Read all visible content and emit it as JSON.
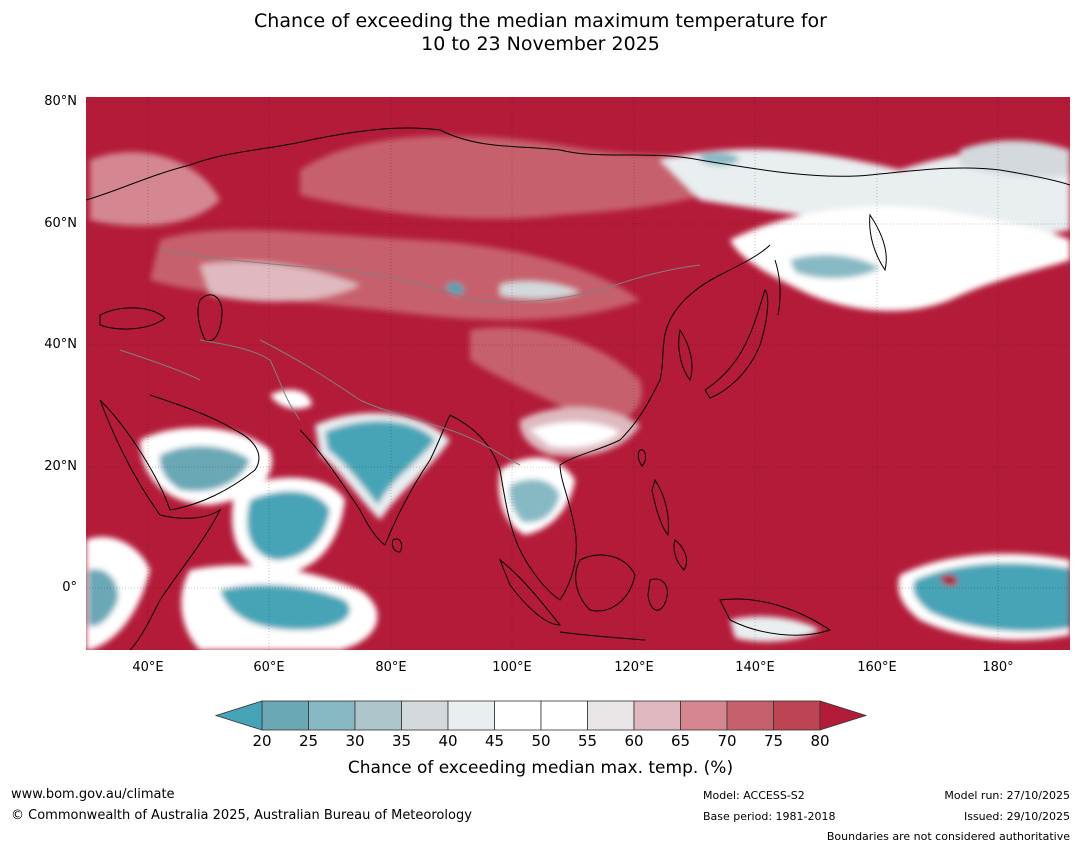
{
  "title": {
    "line1": "Chance of exceeding the median maximum temperature for",
    "line2": "10 to 23 November 2025"
  },
  "map": {
    "lat_labels": [
      "80°N",
      "60°N",
      "40°N",
      "20°N",
      "0°"
    ],
    "lon_labels": [
      "40°E",
      "60°E",
      "80°E",
      "100°E",
      "120°E",
      "140°E",
      "160°E",
      "180°"
    ],
    "extent": {
      "lon_min": 30,
      "lon_max": 192,
      "lat_min": -10,
      "lat_max": 81
    },
    "colors": {
      "above_80": "#b31b39",
      "below_20": "#46a4b7",
      "land_outline": "#000000",
      "borders": "#808080"
    }
  },
  "legend": {
    "ticks": [
      "20",
      "25",
      "30",
      "35",
      "40",
      "45",
      "50",
      "55",
      "60",
      "65",
      "70",
      "75",
      "80"
    ],
    "colors": [
      "#46a4b7",
      "#6aa8b6",
      "#87b9c5",
      "#adc6cc",
      "#d3d9dc",
      "#e9eef0",
      "#ffffff",
      "#ffffff",
      "#e9e4e6",
      "#dfb9bf",
      "#d48791",
      "#c7606d",
      "#bc4453",
      "#b31b39"
    ],
    "title": "Chance of exceeding median max. temp. (%)"
  },
  "footer": {
    "website": "www.bom.gov.au/climate",
    "copyright": "© Commonwealth of Australia 2025, Australian Bureau of Meteorology",
    "model": "Model: ACCESS-S2",
    "base_period": "Base period: 1981-2018",
    "model_run": "Model run: 27/10/2025",
    "issued": "Issued: 29/10/2025",
    "disclaimer": "Boundaries are not considered authoritative"
  }
}
